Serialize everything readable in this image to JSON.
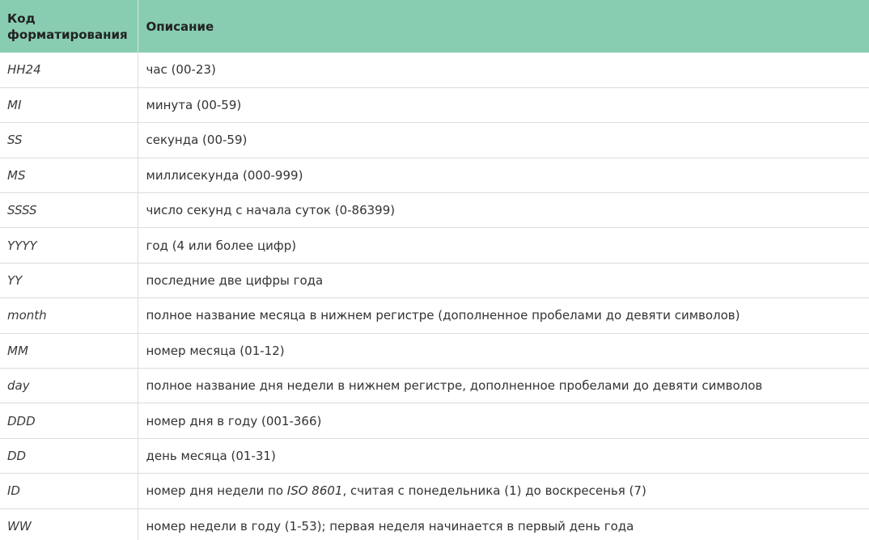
{
  "table": {
    "headers": {
      "code_line1": "Код",
      "code_line2": "форматирования",
      "description": "Описание"
    },
    "rows": [
      {
        "code": "HH24",
        "desc": "час (00-23)"
      },
      {
        "code": "MI",
        "desc": "минута (00-59)"
      },
      {
        "code": "SS",
        "desc": "секунда (00-59)"
      },
      {
        "code": "MS",
        "desc": "миллисекунда (000-999)"
      },
      {
        "code": "SSSS",
        "desc": "число секунд с начала суток (0-86399)"
      },
      {
        "code": "YYYY",
        "desc": "год (4 или более цифр)"
      },
      {
        "code": "YY",
        "desc": "последние две цифры года"
      },
      {
        "code": "month",
        "desc": "полное название месяца в нижнем регистре (дополненное пробелами до девяти символов)"
      },
      {
        "code": "MM",
        "desc": "номер месяца (01-12)"
      },
      {
        "code": "day",
        "desc": "полное название дня недели в нижнем регистре, дополненное пробелами до девяти символов"
      },
      {
        "code": "DDD",
        "desc": "номер дня в году (001-366)"
      },
      {
        "code": "DD",
        "desc": "день месяца (01-31)"
      },
      {
        "code": "ID",
        "desc_before": "номер дня недели по ",
        "desc_em": "ISO 8601",
        "desc_after": ", считая с понедельника (1) до воскресенья (7)"
      },
      {
        "code": "WW",
        "desc": "номер недели в году (1-53); первая неделя начинается в первый день года"
      }
    ]
  },
  "colors": {
    "header_background": "#88cdb1",
    "border": "#dcdcdc"
  }
}
